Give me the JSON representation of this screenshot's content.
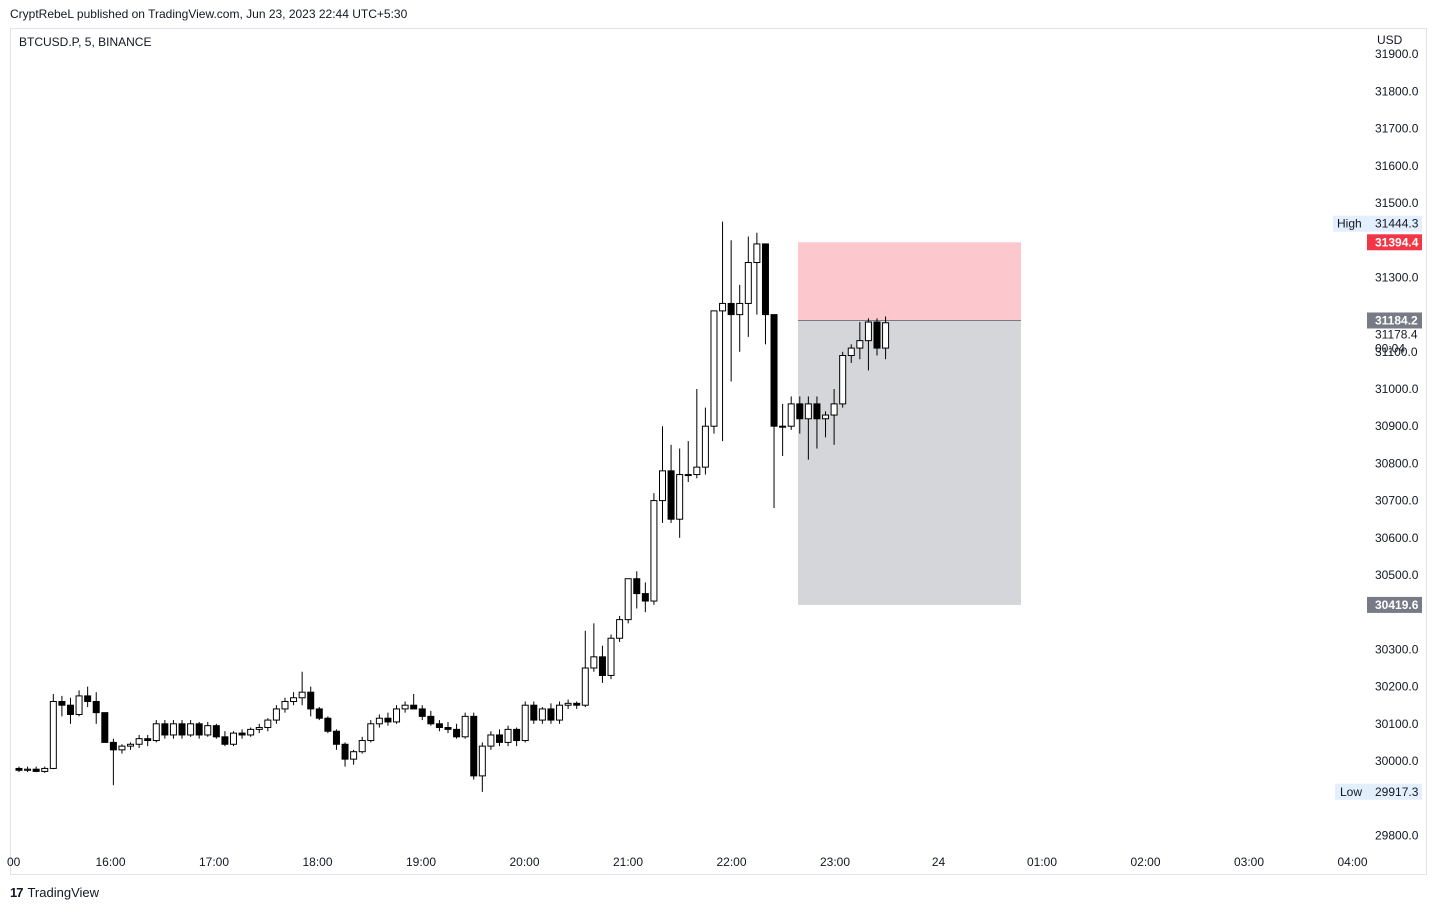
{
  "header": {
    "published": "CryptRebeL published on TradingView.com, Jun 23, 2023 22:44 UTC+5:30"
  },
  "symbol": {
    "label": "BTCUSD.P, 5, BINANCE"
  },
  "footer": {
    "brand": "TradingView",
    "logo": "17"
  },
  "colors": {
    "up_body": "#ffffff",
    "down_body": "#000000",
    "wick": "#000000",
    "stop_zone": "#fcc8cd",
    "target_zone": "#d5d6da",
    "stop_badge": "#f23645",
    "grey_badge": "#787b86"
  },
  "chart_data": {
    "type": "candlestick",
    "currency": "USD",
    "ylim": [
      29720,
      31950
    ],
    "y_ticks": [
      29800,
      30000,
      30100,
      30200,
      30300,
      30500,
      30600,
      30700,
      30800,
      30900,
      31000,
      31100,
      31300,
      31500,
      31600,
      31700,
      31800,
      31900
    ],
    "x_ticks": [
      "00",
      "16:00",
      "17:00",
      "18:00",
      "19:00",
      "20:00",
      "21:00",
      "22:00",
      "23:00",
      "24",
      "01:00",
      "02:00",
      "03:00",
      "04:00"
    ],
    "high": {
      "label": "High",
      "value": "31444.3"
    },
    "low": {
      "label": "Low",
      "value": "29917.3"
    },
    "entry_price": "31184.2",
    "stop_price": "31394.4",
    "target_price": "30419.6",
    "last_price": "31178.4",
    "countdown": "00:04",
    "candles": [
      [
        29980,
        29985,
        29970,
        29975
      ],
      [
        29975,
        29985,
        29970,
        29978
      ],
      [
        29978,
        29985,
        29970,
        29972
      ],
      [
        29972,
        29985,
        29968,
        29980
      ],
      [
        29980,
        30180,
        29978,
        30160
      ],
      [
        30160,
        30175,
        30120,
        30150
      ],
      [
        30150,
        30170,
        30100,
        30125
      ],
      [
        30125,
        30190,
        30120,
        30175
      ],
      [
        30175,
        30200,
        30145,
        30160
      ],
      [
        30160,
        30185,
        30100,
        30130
      ],
      [
        30130,
        30130,
        30050,
        30050
      ],
      [
        30050,
        30060,
        29935,
        30030
      ],
      [
        30030,
        30045,
        30020,
        30040
      ],
      [
        30040,
        30050,
        30030,
        30045
      ],
      [
        30045,
        30070,
        30035,
        30060
      ],
      [
        30060,
        30070,
        30040,
        30055
      ],
      [
        30055,
        30110,
        30050,
        30100
      ],
      [
        30100,
        30110,
        30060,
        30070
      ],
      [
        30070,
        30110,
        30060,
        30100
      ],
      [
        30100,
        30110,
        30060,
        30070
      ],
      [
        30070,
        30110,
        30065,
        30100
      ],
      [
        30100,
        30105,
        30060,
        30070
      ],
      [
        30070,
        30105,
        30065,
        30095
      ],
      [
        30095,
        30100,
        30060,
        30065
      ],
      [
        30065,
        30080,
        30040,
        30045
      ],
      [
        30045,
        30080,
        30040,
        30075
      ],
      [
        30075,
        30085,
        30060,
        30070
      ],
      [
        30070,
        30090,
        30065,
        30085
      ],
      [
        30085,
        30100,
        30075,
        30090
      ],
      [
        30090,
        30115,
        30080,
        30110
      ],
      [
        30110,
        30150,
        30100,
        30140
      ],
      [
        30140,
        30170,
        30130,
        30160
      ],
      [
        30160,
        30185,
        30150,
        30170
      ],
      [
        30170,
        30240,
        30150,
        30185
      ],
      [
        30185,
        30200,
        30120,
        30140
      ],
      [
        30140,
        30145,
        30110,
        30115
      ],
      [
        30115,
        30120,
        30075,
        30080
      ],
      [
        30080,
        30085,
        30030,
        30045
      ],
      [
        30045,
        30050,
        29985,
        30005
      ],
      [
        30005,
        30030,
        29990,
        30025
      ],
      [
        30025,
        30065,
        30020,
        30055
      ],
      [
        30055,
        30110,
        30050,
        30100
      ],
      [
        30100,
        30125,
        30090,
        30115
      ],
      [
        30115,
        30130,
        30095,
        30105
      ],
      [
        30105,
        30150,
        30100,
        30140
      ],
      [
        30140,
        30160,
        30130,
        30150
      ],
      [
        30150,
        30180,
        30140,
        30140
      ],
      [
        30140,
        30150,
        30110,
        30120
      ],
      [
        30120,
        30135,
        30095,
        30100
      ],
      [
        30100,
        30110,
        30080,
        30090
      ],
      [
        30090,
        30105,
        30075,
        30085
      ],
      [
        30085,
        30100,
        30060,
        30065
      ],
      [
        30065,
        30130,
        30060,
        30120
      ],
      [
        30120,
        30130,
        29950,
        29960
      ],
      [
        29960,
        30050,
        29917,
        30040
      ],
      [
        30040,
        30080,
        30030,
        30070
      ],
      [
        30070,
        30085,
        30040,
        30050
      ],
      [
        30050,
        30095,
        30040,
        30085
      ],
      [
        30085,
        30090,
        30040,
        30055
      ],
      [
        30055,
        30160,
        30050,
        30150
      ],
      [
        30150,
        30160,
        30100,
        30110
      ],
      [
        30110,
        30145,
        30100,
        30140
      ],
      [
        30140,
        30155,
        30100,
        30110
      ],
      [
        30110,
        30160,
        30100,
        30150
      ],
      [
        30150,
        30165,
        30140,
        30155
      ],
      [
        30155,
        30160,
        30140,
        30150
      ],
      [
        30150,
        30350,
        30145,
        30250
      ],
      [
        30250,
        30370,
        30240,
        30280
      ],
      [
        30280,
        30310,
        30210,
        30230
      ],
      [
        30230,
        30340,
        30220,
        30330
      ],
      [
        30330,
        30390,
        30320,
        30380
      ],
      [
        30380,
        30490,
        30370,
        30490
      ],
      [
        30490,
        30510,
        30410,
        30450
      ],
      [
        30450,
        30480,
        30400,
        30430
      ],
      [
        30430,
        30720,
        30420,
        30700
      ],
      [
        30700,
        30900,
        30640,
        30780
      ],
      [
        30780,
        30850,
        30640,
        30650
      ],
      [
        30650,
        30840,
        30600,
        30770
      ],
      [
        30770,
        30860,
        30750,
        30770
      ],
      [
        30770,
        31000,
        30760,
        30790
      ],
      [
        30790,
        30950,
        30770,
        30900
      ],
      [
        30900,
        31200,
        30880,
        31210
      ],
      [
        31210,
        31450,
        30860,
        31230
      ],
      [
        31230,
        31400,
        31020,
        31200
      ],
      [
        31200,
        31280,
        31100,
        31230
      ],
      [
        31230,
        31410,
        31140,
        31340
      ],
      [
        31340,
        31420,
        31200,
        31390
      ],
      [
        31390,
        31390,
        31120,
        31200
      ],
      [
        31200,
        31200,
        30680,
        30900
      ],
      [
        30900,
        30960,
        30820,
        30900
      ],
      [
        30900,
        30980,
        30890,
        30960
      ],
      [
        30960,
        30980,
        30880,
        30920
      ],
      [
        30920,
        30980,
        30810,
        30960
      ],
      [
        30960,
        30980,
        30840,
        30920
      ],
      [
        30920,
        30940,
        30870,
        30930
      ],
      [
        30930,
        31000,
        30850,
        30960
      ],
      [
        30960,
        31100,
        30950,
        31090
      ],
      [
        31090,
        31120,
        31070,
        31110
      ],
      [
        31110,
        31180,
        31080,
        31130
      ],
      [
        31130,
        31190,
        31050,
        31180
      ],
      [
        31180,
        31190,
        31090,
        31110
      ],
      [
        31110,
        31195,
        31080,
        31178
      ]
    ]
  }
}
